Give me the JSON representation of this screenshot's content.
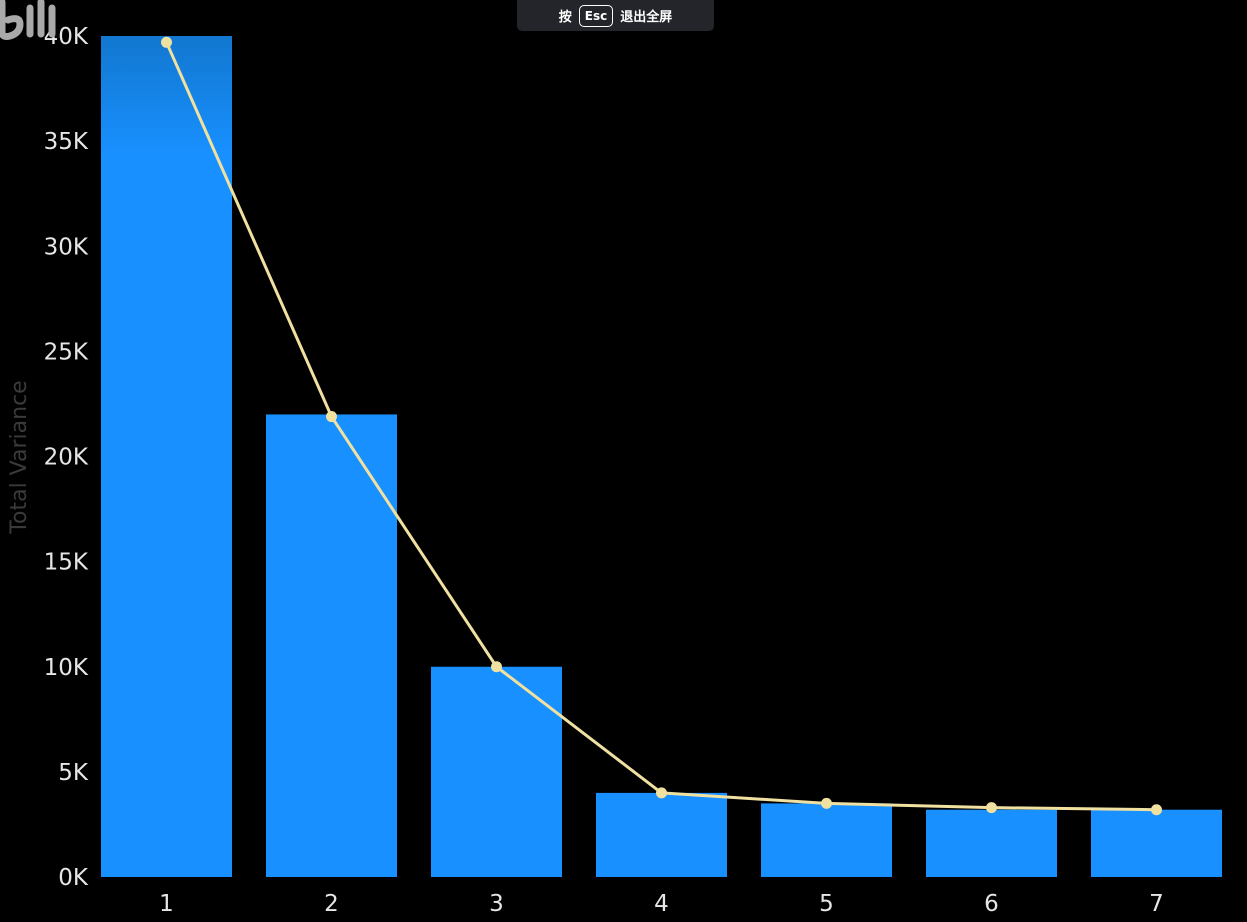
{
  "overlay": {
    "prefix": "按",
    "key": "Esc",
    "suffix": "退出全屏"
  },
  "watermark_icon": "bilibili-logo-icon",
  "colors": {
    "background": "#000000",
    "bar": "#1890ff",
    "bar_top": "#1277cf",
    "line": "#f0e1a0",
    "tick_text": "#e6e6e6",
    "axis_title": "#3a3a3a"
  },
  "chart_data": {
    "type": "bar",
    "title": "",
    "xlabel": "",
    "ylabel": "Total Variance",
    "categories": [
      "1",
      "2",
      "3",
      "4",
      "5",
      "6",
      "7"
    ],
    "values": [
      40000,
      22000,
      10000,
      4000,
      3500,
      3200,
      3200
    ],
    "line_series": {
      "type": "line",
      "values": [
        39700,
        21900,
        10000,
        4000,
        3500,
        3300,
        3200
      ]
    },
    "ylim": [
      0,
      40000
    ],
    "yticks": [
      {
        "value": 0,
        "label": "0K"
      },
      {
        "value": 5000,
        "label": "5K"
      },
      {
        "value": 10000,
        "label": "10K"
      },
      {
        "value": 15000,
        "label": "15K"
      },
      {
        "value": 20000,
        "label": "20K"
      },
      {
        "value": 25000,
        "label": "25K"
      },
      {
        "value": 30000,
        "label": "30K"
      },
      {
        "value": 35000,
        "label": "35K"
      },
      {
        "value": 40000,
        "label": "40K"
      }
    ],
    "grid": false,
    "legend": "none"
  }
}
